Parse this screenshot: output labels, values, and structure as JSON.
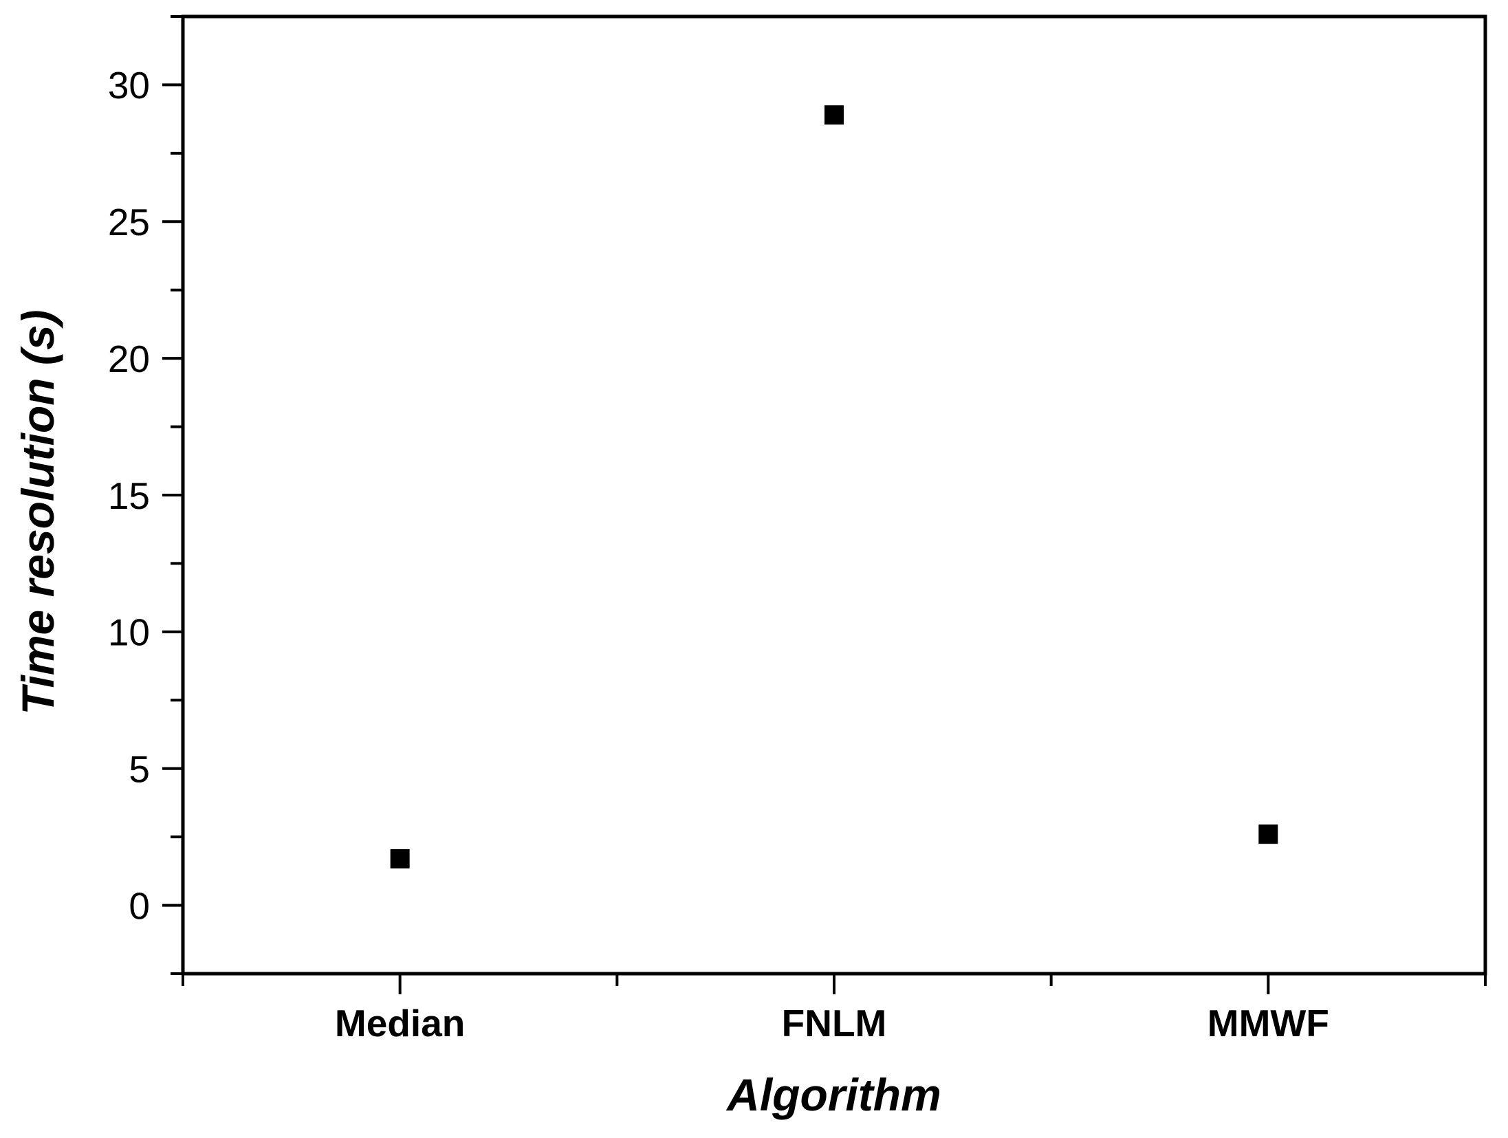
{
  "colors": {
    "ink": "#000000",
    "background": "#ffffff"
  },
  "chart_data": {
    "type": "scatter",
    "xlabel": "Algorithm",
    "ylabel": "Time resolution (s)",
    "categories": [
      "Median",
      "FNLM",
      "MMWF"
    ],
    "values": [
      1.7,
      28.9,
      2.6
    ],
    "marker": "filled-square",
    "marker_color": "#000000",
    "grid": false,
    "legend": "none",
    "ylim": [
      -2.5,
      32.5
    ],
    "xlim": [
      0.5,
      3.5
    ],
    "y_major_ticks": [
      0,
      5,
      10,
      15,
      20,
      25,
      30
    ],
    "y_minor_ticks": [
      -2.5,
      2.5,
      7.5,
      12.5,
      17.5,
      22.5,
      27.5,
      32.5
    ],
    "x_major_tick_positions": [
      1,
      2,
      3
    ],
    "x_minor_tick_positions": [
      0.5,
      1.5,
      2.5,
      3.5
    ]
  }
}
